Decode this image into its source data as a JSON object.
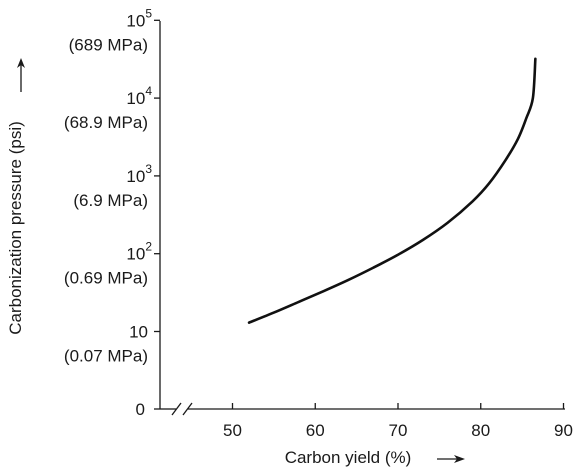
{
  "chart_data": {
    "type": "line",
    "title": "",
    "xlabel": "Carbon yield (%)",
    "ylabel": "Carbonization pressure (psi)",
    "xlim": [
      50,
      90
    ],
    "xticks": [
      "50",
      "60",
      "70",
      "80",
      "90"
    ],
    "y_scale": "log",
    "y_axis_break": "0",
    "x_axis_break": true,
    "ylim": [
      10,
      100000
    ],
    "yticks": [
      {
        "value": 100000,
        "base": "10",
        "exp": "5",
        "sub": "(689 MPa)"
      },
      {
        "value": 10000,
        "base": "10",
        "exp": "4",
        "sub": "(68.9 MPa)"
      },
      {
        "value": 1000,
        "base": "10",
        "exp": "3",
        "sub": "(6.9 MPa)"
      },
      {
        "value": 100,
        "base": "10",
        "exp": "2",
        "sub": "(0.69 MPa)"
      },
      {
        "value": 10,
        "base": "10",
        "exp": "",
        "sub": "(0.07 MPa)"
      }
    ],
    "zero_label": "0",
    "grid": false,
    "series": [
      {
        "color": "#111111",
        "x": [
          52,
          55,
          58,
          61,
          64,
          67,
          70,
          73,
          76,
          79,
          81,
          83,
          84.5,
          85.5,
          86.3,
          86.6
        ],
        "y": [
          13,
          17.5,
          24,
          33,
          46,
          66,
          97,
          150,
          250,
          470,
          800,
          1600,
          3000,
          5500,
          10000,
          32000
        ]
      }
    ]
  }
}
